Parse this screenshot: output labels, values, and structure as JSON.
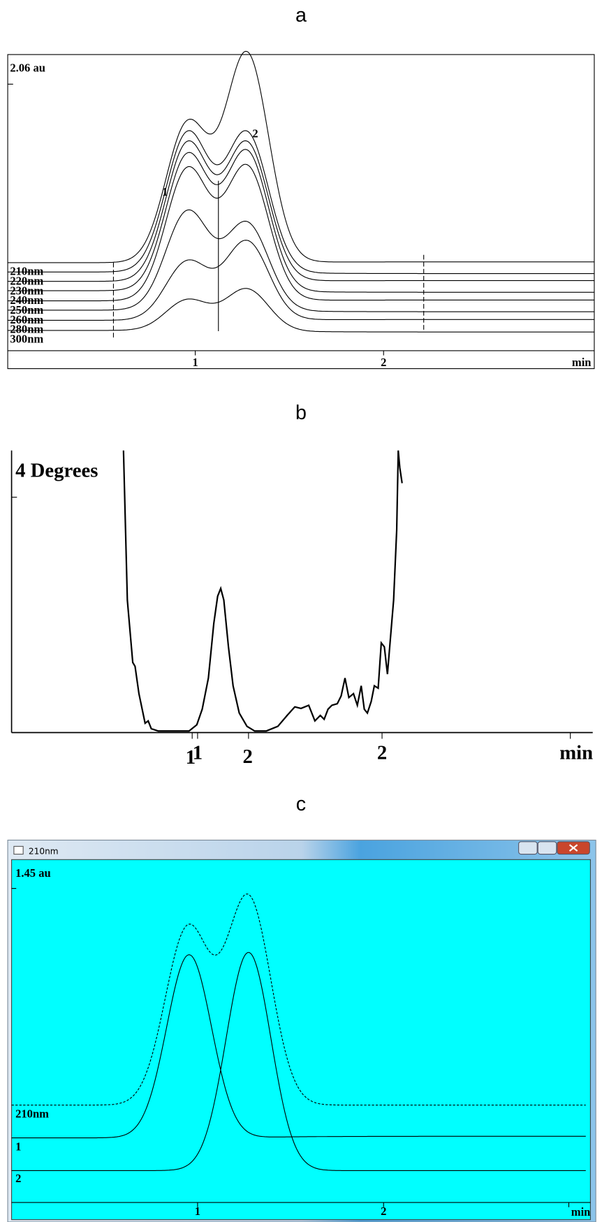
{
  "panels": [
    {
      "label": "a",
      "y_label": "2.06 au",
      "channels": [
        "210nm",
        "220nm",
        "230nm",
        "240nm",
        "250nm",
        "260nm",
        "280nm",
        "300nm"
      ],
      "peak_labels": [
        "1",
        "2"
      ],
      "x_ticks": [
        "1",
        "2"
      ],
      "x_unit": "min"
    },
    {
      "label": "b",
      "y_label": "4 Degrees",
      "x_ticks": [
        "1",
        "1",
        "2",
        "2"
      ],
      "x_unit": "min"
    },
    {
      "label": "c",
      "window_title": "210nm",
      "y_label": "1.45 au",
      "trace_labels": [
        "210nm",
        "1",
        "2"
      ],
      "x_ticks": [
        "1",
        "2"
      ],
      "x_unit": "min"
    }
  ]
}
